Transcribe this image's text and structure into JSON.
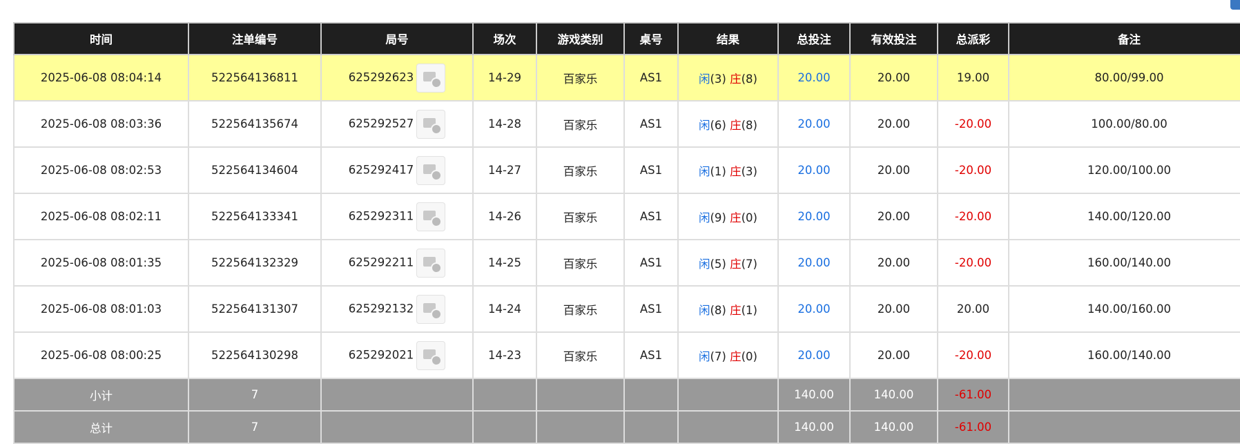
{
  "table": {
    "headers": [
      "时间",
      "注单编号",
      "局号",
      "场次",
      "游戏类别",
      "桌号",
      "结果",
      "总投注",
      "有效投注",
      "总派彩",
      "备注"
    ],
    "rows": [
      {
        "time": "2025-06-08 08:04:14",
        "order": "522564136811",
        "round": "625292623",
        "shoe": "14-29",
        "game": "百家乐",
        "table": "AS1",
        "result": {
          "player": "闲",
          "player_score": "(3)",
          "banker": "庄",
          "banker_score": "(8)"
        },
        "bet": "20.00",
        "valid": "20.00",
        "payout": "19.00",
        "note": "80.00/99.00",
        "highlight": true
      },
      {
        "time": "2025-06-08 08:03:36",
        "order": "522564135674",
        "round": "625292527",
        "shoe": "14-28",
        "game": "百家乐",
        "table": "AS1",
        "result": {
          "player": "闲",
          "player_score": "(6)",
          "banker": "庄",
          "banker_score": "(8)"
        },
        "bet": "20.00",
        "valid": "20.00",
        "payout": "-20.00",
        "note": "100.00/80.00"
      },
      {
        "time": "2025-06-08 08:02:53",
        "order": "522564134604",
        "round": "625292417",
        "shoe": "14-27",
        "game": "百家乐",
        "table": "AS1",
        "result": {
          "player": "闲",
          "player_score": "(1)",
          "banker": "庄",
          "banker_score": "(3)"
        },
        "bet": "20.00",
        "valid": "20.00",
        "payout": "-20.00",
        "note": "120.00/100.00"
      },
      {
        "time": "2025-06-08 08:02:11",
        "order": "522564133341",
        "round": "625292311",
        "shoe": "14-26",
        "game": "百家乐",
        "table": "AS1",
        "result": {
          "player": "闲",
          "player_score": "(9)",
          "banker": "庄",
          "banker_score": "(0)"
        },
        "bet": "20.00",
        "valid": "20.00",
        "payout": "-20.00",
        "note": "140.00/120.00"
      },
      {
        "time": "2025-06-08 08:01:35",
        "order": "522564132329",
        "round": "625292211",
        "shoe": "14-25",
        "game": "百家乐",
        "table": "AS1",
        "result": {
          "player": "闲",
          "player_score": "(5)",
          "banker": "庄",
          "banker_score": "(7)"
        },
        "bet": "20.00",
        "valid": "20.00",
        "payout": "-20.00",
        "note": "160.00/140.00"
      },
      {
        "time": "2025-06-08 08:01:03",
        "order": "522564131307",
        "round": "625292132",
        "shoe": "14-24",
        "game": "百家乐",
        "table": "AS1",
        "result": {
          "player": "闲",
          "player_score": "(8)",
          "banker": "庄",
          "banker_score": "(1)"
        },
        "bet": "20.00",
        "valid": "20.00",
        "payout": "20.00",
        "note": "140.00/160.00"
      },
      {
        "time": "2025-06-08 08:00:25",
        "order": "522564130298",
        "round": "625292021",
        "shoe": "14-23",
        "game": "百家乐",
        "table": "AS1",
        "result": {
          "player": "闲",
          "player_score": "(7)",
          "banker": "庄",
          "banker_score": "(0)"
        },
        "bet": "20.00",
        "valid": "20.00",
        "payout": "-20.00",
        "note": "160.00/140.00"
      }
    ],
    "summary": [
      {
        "label": "小计",
        "count": "7",
        "bet": "140.00",
        "valid": "140.00",
        "payout": "-61.00"
      },
      {
        "label": "总计",
        "count": "7",
        "bet": "140.00",
        "valid": "140.00",
        "payout": "-61.00"
      }
    ]
  }
}
